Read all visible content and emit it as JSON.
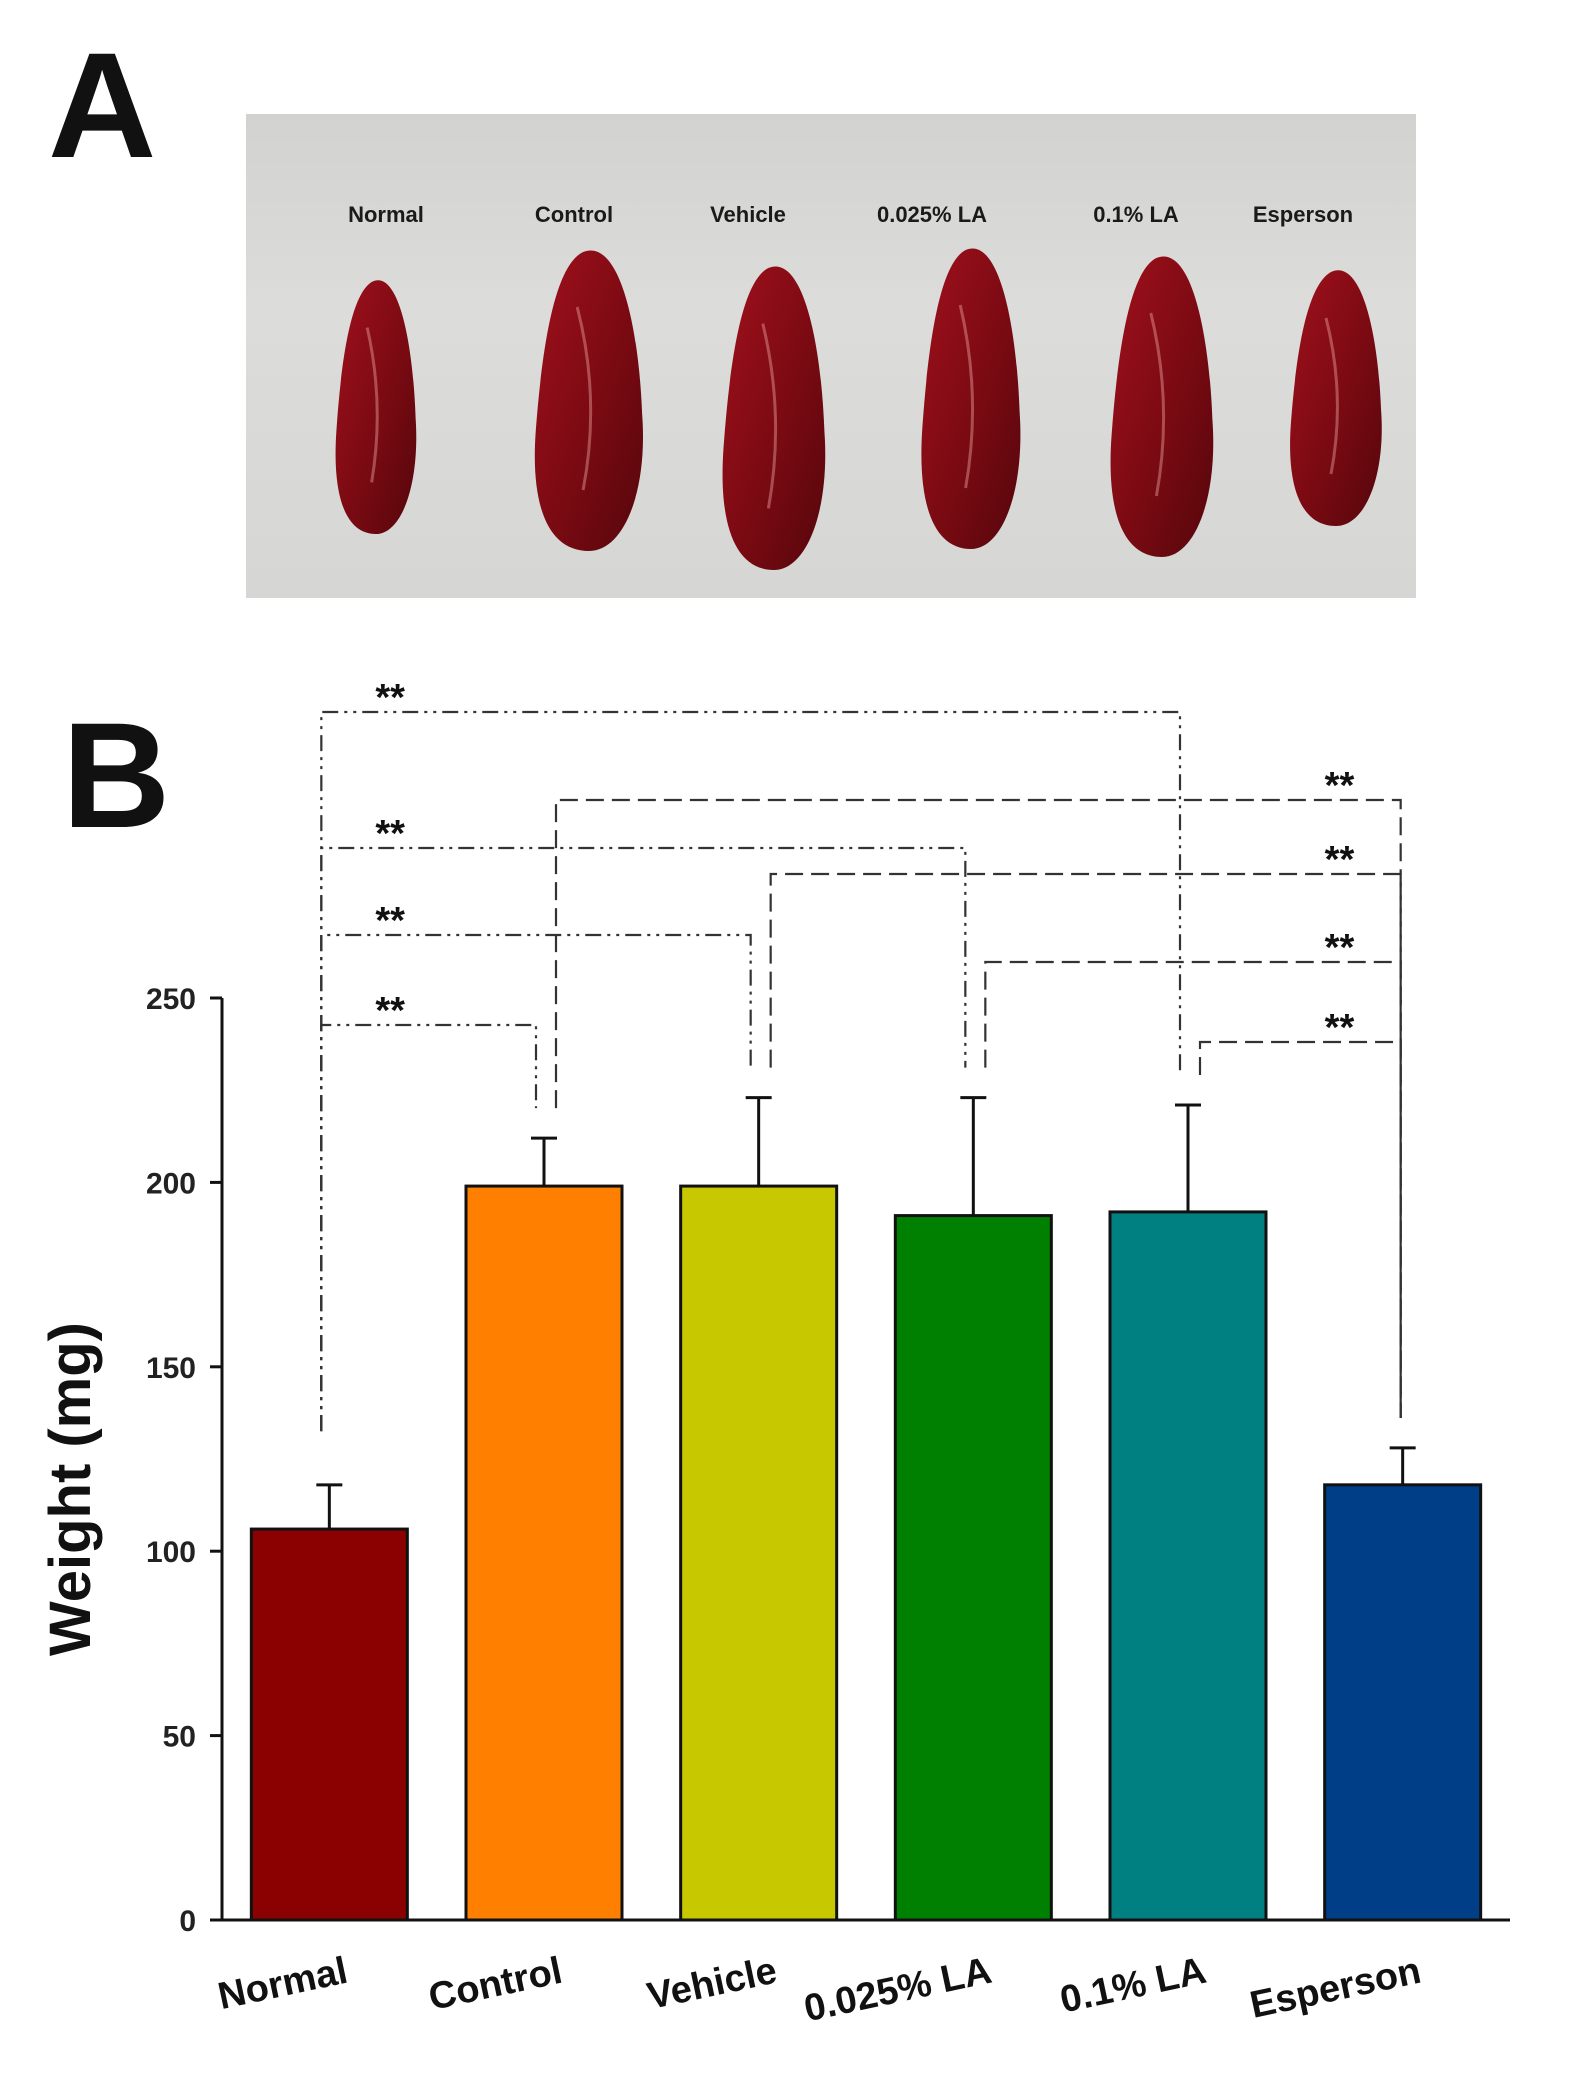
{
  "panels": {
    "a_label": "A",
    "b_label": "B"
  },
  "photo": {
    "labels": [
      "Normal",
      "Control",
      "Vehicle",
      "0.025% LA",
      "0.1% LA",
      "Esperson"
    ],
    "specimen_color": "#7a0a12",
    "background_color": "#d8d8d6"
  },
  "chart_data": {
    "type": "bar",
    "title": "",
    "xlabel": "",
    "ylabel": "Weight (mg)",
    "ylim": [
      0,
      250
    ],
    "yticks": [
      0,
      50,
      100,
      150,
      200,
      250
    ],
    "categories": [
      "Normal",
      "Control",
      "Vehicle",
      "0.025% LA",
      "0.1% LA",
      "Esperson"
    ],
    "values": [
      106,
      199,
      199,
      191,
      192,
      118
    ],
    "errors": [
      12,
      13,
      24,
      32,
      29,
      10
    ],
    "colors": [
      "#8b0000",
      "#ff8000",
      "#c8c800",
      "#008000",
      "#008080",
      "#003f87"
    ],
    "significance": [
      {
        "from": "Normal",
        "to": "0.1% LA",
        "label": "**",
        "style": "dashdotdot"
      },
      {
        "from": "Normal",
        "to": "0.025% LA",
        "label": "**",
        "style": "dashdotdot"
      },
      {
        "from": "Normal",
        "to": "Vehicle",
        "label": "**",
        "style": "dashdotdot"
      },
      {
        "from": "Normal",
        "to": "Control",
        "label": "**",
        "style": "dashdotdot"
      },
      {
        "from": "Control",
        "to": "Esperson",
        "label": "**",
        "style": "dashed"
      },
      {
        "from": "Vehicle",
        "to": "Esperson",
        "label": "**",
        "style": "dashed"
      },
      {
        "from": "0.025% LA",
        "to": "Esperson",
        "label": "**",
        "style": "dashed"
      },
      {
        "from": "0.1% LA",
        "to": "Esperson",
        "label": "**",
        "style": "dashed"
      }
    ]
  }
}
